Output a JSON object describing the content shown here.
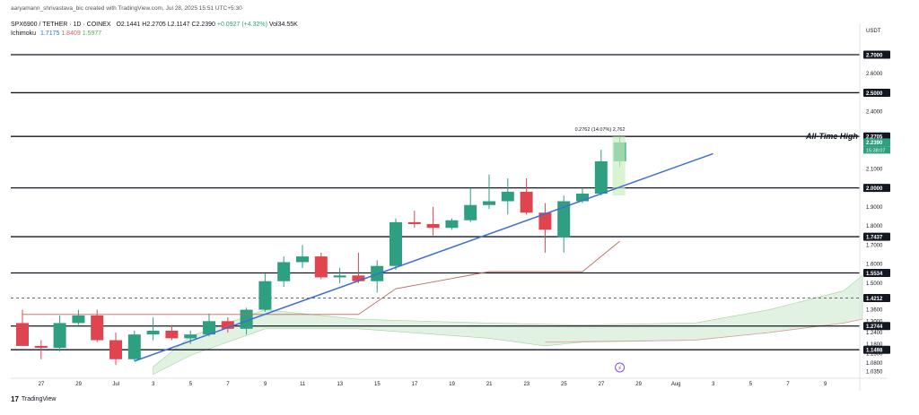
{
  "credit": "aaryamann_shrivastava_bic created with TradingView.com, Jul 28, 2025 15:51 UTC+5:30",
  "symbol": {
    "name": "SPX6900 / TETHER · 1D · COINEX",
    "open": "O2.1441",
    "high": "H2.2705",
    "low": "L2.1147",
    "close": "C2.2390",
    "change": "+0.0927 (+4.32%)",
    "volume": "Vol34.55K"
  },
  "ichimoku": {
    "label": "Ichimoku",
    "v1": "1.7175",
    "v2": "1.8409",
    "v3": "1.5977"
  },
  "footer_logo": "TradingView",
  "colors": {
    "up": "#2e9f80",
    "down": "#e0444f",
    "trendline": "#3b6fd6",
    "kumo_fill": "#d8eed8",
    "base_line": "#b96a5c",
    "level": "#131722",
    "ath_highlight": "#c9f0bd"
  },
  "chart_data": {
    "type": "candlestick",
    "y_unit": "USDT",
    "ylim": [
      1.0,
      2.78
    ],
    "price_scale_label": "USDT",
    "price_ticks": [
      "2.6000",
      "2.4000",
      "2.1000",
      "1.9000",
      "1.8000",
      "1.7000",
      "1.6000",
      "1.5000",
      "1.3600",
      "1.3000",
      "1.2400",
      "1.1800",
      "1.1300",
      "1.0800",
      "1.0350"
    ],
    "x_ticks": [
      "27",
      "29",
      "Jul",
      "3",
      "5",
      "7",
      "9",
      "11",
      "13",
      "15",
      "17",
      "19",
      "21",
      "23",
      "25",
      "27",
      "29",
      "Aug",
      "3",
      "5",
      "7",
      "9"
    ],
    "levels": [
      {
        "value": 2.7,
        "label": "2.7000"
      },
      {
        "value": 2.5,
        "label": "2.5000"
      },
      {
        "value": 2.2705,
        "label": "2.2705"
      },
      {
        "value": 2.0,
        "label": "2.0000"
      },
      {
        "value": 1.7437,
        "label": "1.7437"
      },
      {
        "value": 1.5534,
        "label": "1.5534"
      },
      {
        "value": 1.2744,
        "label": "1.2744"
      },
      {
        "value": 1.1498,
        "label": "1.1498"
      }
    ],
    "dashed_level": {
      "value": 1.4212,
      "label": "1.4212"
    },
    "current_price": {
      "value": 2.239,
      "label": "2.2390",
      "countdown": "15:38:07"
    },
    "ath_label": "All-Time High",
    "measure_label": "0.2762 (14.07%) 2,762",
    "candles": [
      {
        "o": 1.29,
        "h": 1.36,
        "l": 1.17,
        "c": 1.17
      },
      {
        "o": 1.17,
        "h": 1.2,
        "l": 1.1,
        "c": 1.16
      },
      {
        "o": 1.16,
        "h": 1.33,
        "l": 1.14,
        "c": 1.29
      },
      {
        "o": 1.29,
        "h": 1.36,
        "l": 1.28,
        "c": 1.33
      },
      {
        "o": 1.33,
        "h": 1.36,
        "l": 1.19,
        "c": 1.2
      },
      {
        "o": 1.2,
        "h": 1.24,
        "l": 1.07,
        "c": 1.1
      },
      {
        "o": 1.1,
        "h": 1.25,
        "l": 1.09,
        "c": 1.23
      },
      {
        "o": 1.23,
        "h": 1.32,
        "l": 1.2,
        "c": 1.25
      },
      {
        "o": 1.25,
        "h": 1.28,
        "l": 1.2,
        "c": 1.21
      },
      {
        "o": 1.21,
        "h": 1.25,
        "l": 1.18,
        "c": 1.23
      },
      {
        "o": 1.23,
        "h": 1.34,
        "l": 1.22,
        "c": 1.3
      },
      {
        "o": 1.3,
        "h": 1.32,
        "l": 1.24,
        "c": 1.26
      },
      {
        "o": 1.26,
        "h": 1.37,
        "l": 1.23,
        "c": 1.36
      },
      {
        "o": 1.36,
        "h": 1.55,
        "l": 1.35,
        "c": 1.51
      },
      {
        "o": 1.51,
        "h": 1.64,
        "l": 1.48,
        "c": 1.61
      },
      {
        "o": 1.61,
        "h": 1.7,
        "l": 1.58,
        "c": 1.64
      },
      {
        "o": 1.64,
        "h": 1.66,
        "l": 1.52,
        "c": 1.53
      },
      {
        "o": 1.53,
        "h": 1.58,
        "l": 1.5,
        "c": 1.54
      },
      {
        "o": 1.54,
        "h": 1.66,
        "l": 1.5,
        "c": 1.51
      },
      {
        "o": 1.51,
        "h": 1.62,
        "l": 1.45,
        "c": 1.59
      },
      {
        "o": 1.59,
        "h": 1.84,
        "l": 1.57,
        "c": 1.82
      },
      {
        "o": 1.82,
        "h": 1.88,
        "l": 1.79,
        "c": 1.81
      },
      {
        "o": 1.81,
        "h": 1.9,
        "l": 1.75,
        "c": 1.79
      },
      {
        "o": 1.79,
        "h": 1.84,
        "l": 1.78,
        "c": 1.83
      },
      {
        "o": 1.83,
        "h": 2.0,
        "l": 1.82,
        "c": 1.91
      },
      {
        "o": 1.91,
        "h": 2.07,
        "l": 1.89,
        "c": 1.93
      },
      {
        "o": 1.93,
        "h": 2.05,
        "l": 1.86,
        "c": 1.98
      },
      {
        "o": 1.98,
        "h": 2.05,
        "l": 1.86,
        "c": 1.87
      },
      {
        "o": 1.87,
        "h": 1.92,
        "l": 1.66,
        "c": 1.78
      },
      {
        "o": 1.74,
        "h": 1.96,
        "l": 1.66,
        "c": 1.93
      },
      {
        "o": 1.93,
        "h": 2.0,
        "l": 1.92,
        "c": 1.97
      },
      {
        "o": 1.97,
        "h": 2.2,
        "l": 1.96,
        "c": 2.14
      },
      {
        "o": 2.14,
        "h": 2.27,
        "l": 2.11,
        "c": 2.239
      }
    ],
    "trendline": {
      "from": {
        "index": 6,
        "value": 1.09
      },
      "to": {
        "index": 37,
        "value": 2.18
      }
    },
    "base_line": [
      {
        "index": 0,
        "value": 1.335
      },
      {
        "index": 18,
        "value": 1.335
      },
      {
        "index": 20,
        "value": 1.47
      },
      {
        "index": 25,
        "value": 1.56
      },
      {
        "index": 30,
        "value": 1.56
      },
      {
        "index": 32,
        "value": 1.72
      }
    ],
    "kumo": {
      "upper": [
        {
          "index": 7,
          "value": 1.06
        },
        {
          "index": 9,
          "value": 1.22
        },
        {
          "index": 13,
          "value": 1.36
        },
        {
          "index": 18,
          "value": 1.31
        },
        {
          "index": 25,
          "value": 1.29
        },
        {
          "index": 30,
          "value": 1.28
        },
        {
          "index": 36,
          "value": 1.29
        },
        {
          "index": 40,
          "value": 1.36
        },
        {
          "index": 44,
          "value": 1.46
        },
        {
          "index": 45,
          "value": 1.54
        }
      ],
      "lower": [
        {
          "index": 7,
          "value": 1.02
        },
        {
          "index": 9,
          "value": 1.12
        },
        {
          "index": 13,
          "value": 1.26
        },
        {
          "index": 18,
          "value": 1.26
        },
        {
          "index": 25,
          "value": 1.21
        },
        {
          "index": 28,
          "value": 1.17
        },
        {
          "index": 30,
          "value": 1.19
        },
        {
          "index": 36,
          "value": 1.2
        },
        {
          "index": 40,
          "value": 1.24
        },
        {
          "index": 44,
          "value": 1.29
        },
        {
          "index": 45,
          "value": 1.31
        }
      ]
    },
    "kumo_lead_line": [
      {
        "index": 28,
        "value": 1.19
      },
      {
        "index": 36,
        "value": 1.2
      },
      {
        "index": 40,
        "value": 1.24
      },
      {
        "index": 44,
        "value": 1.29
      },
      {
        "index": 45,
        "value": 1.31
      }
    ],
    "event_marker": {
      "index": 32,
      "glyph": "⚡"
    }
  }
}
